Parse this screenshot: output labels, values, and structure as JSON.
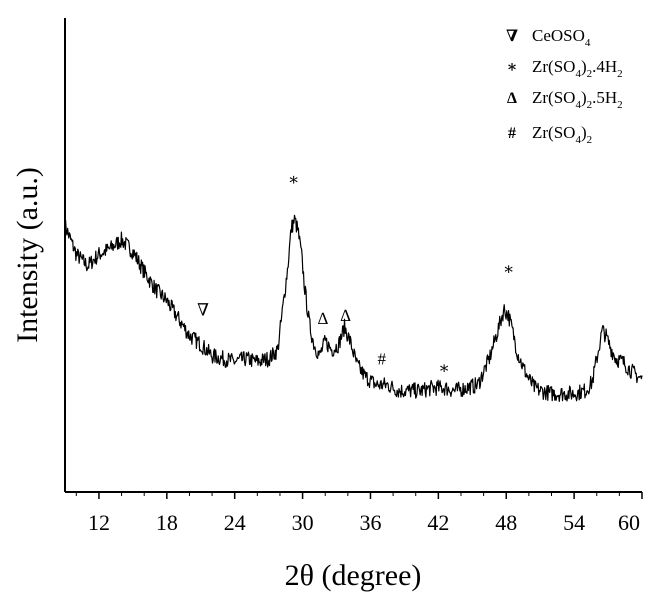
{
  "chart_data": {
    "type": "line",
    "xlabel": "2θ (degree)",
    "ylabel": "Intensity (a.u.)",
    "xlim": [
      9,
      60
    ],
    "ylim": [
      0,
      100
    ],
    "xticks": [
      12,
      18,
      24,
      30,
      36,
      42,
      48,
      54,
      60
    ],
    "y_tick_labels": false,
    "grid": false,
    "legend_position": "top-right",
    "color": "#000000",
    "series": [
      {
        "values_note": "",
        "x": [
          9,
          10,
          11,
          12,
          13,
          14,
          15,
          16,
          17,
          18,
          19,
          20,
          21,
          22,
          23,
          24,
          25,
          26,
          27,
          27.8,
          28.3,
          28.7,
          29.0,
          29.3,
          29.6,
          29.9,
          30.2,
          30.6,
          31,
          31.5,
          32,
          32.6,
          33.2,
          33.7,
          34.2,
          34.8,
          35.5,
          36.5,
          37.5,
          38.5,
          39.5,
          40.5,
          41.5,
          42.5,
          43.5,
          44.5,
          45.5,
          46.5,
          47.2,
          47.8,
          48.2,
          48.6,
          49,
          49.5,
          50,
          50.5,
          51,
          52,
          53,
          54,
          55,
          55.6,
          56.1,
          56.5,
          56.8,
          57.2,
          57.7,
          58.3,
          59,
          59.6,
          60
        ],
        "values": [
          74,
          64,
          60,
          64,
          66,
          69,
          65,
          58,
          52,
          48,
          42,
          36,
          33,
          29,
          28,
          27,
          28,
          27,
          28,
          31,
          47,
          60,
          73,
          76,
          72,
          64,
          52,
          40,
          33,
          29,
          34,
          31,
          33,
          39,
          34,
          26,
          22,
          19,
          19,
          17,
          17,
          17,
          18,
          18,
          17,
          18,
          19,
          28,
          37,
          45,
          43,
          37,
          30,
          25,
          21,
          18,
          17,
          16,
          16,
          16,
          17,
          20,
          30,
          38,
          36,
          32,
          28,
          27,
          24,
          22,
          21
        ]
      }
    ],
    "legend": [
      {
        "symbol": "∇",
        "label_parts": [
          "CeOSO",
          "4",
          ""
        ]
      },
      {
        "symbol": "∗",
        "label_parts": [
          "Zr(SO",
          "4",
          ")",
          "2",
          ".4H",
          "2"
        ]
      },
      {
        "symbol": "∆",
        "label_parts": [
          "Zr(SO",
          "4",
          ")",
          "2",
          ".5H",
          "2"
        ]
      },
      {
        "symbol": "#",
        "label_parts": [
          "Zr(SO",
          "4",
          ")",
          "2"
        ]
      }
    ],
    "annotations": [
      {
        "symbol": "∇",
        "x": 21.2,
        "y": 43
      },
      {
        "symbol": "∗",
        "x": 29.2,
        "y": 88
      },
      {
        "symbol": "∆",
        "x": 31.8,
        "y": 40
      },
      {
        "symbol": "∆",
        "x": 33.8,
        "y": 41
      },
      {
        "symbol": "#",
        "x": 37.0,
        "y": 26
      },
      {
        "symbol": "∗",
        "x": 42.5,
        "y": 23
      },
      {
        "symbol": "∗",
        "x": 48.2,
        "y": 57
      }
    ]
  }
}
